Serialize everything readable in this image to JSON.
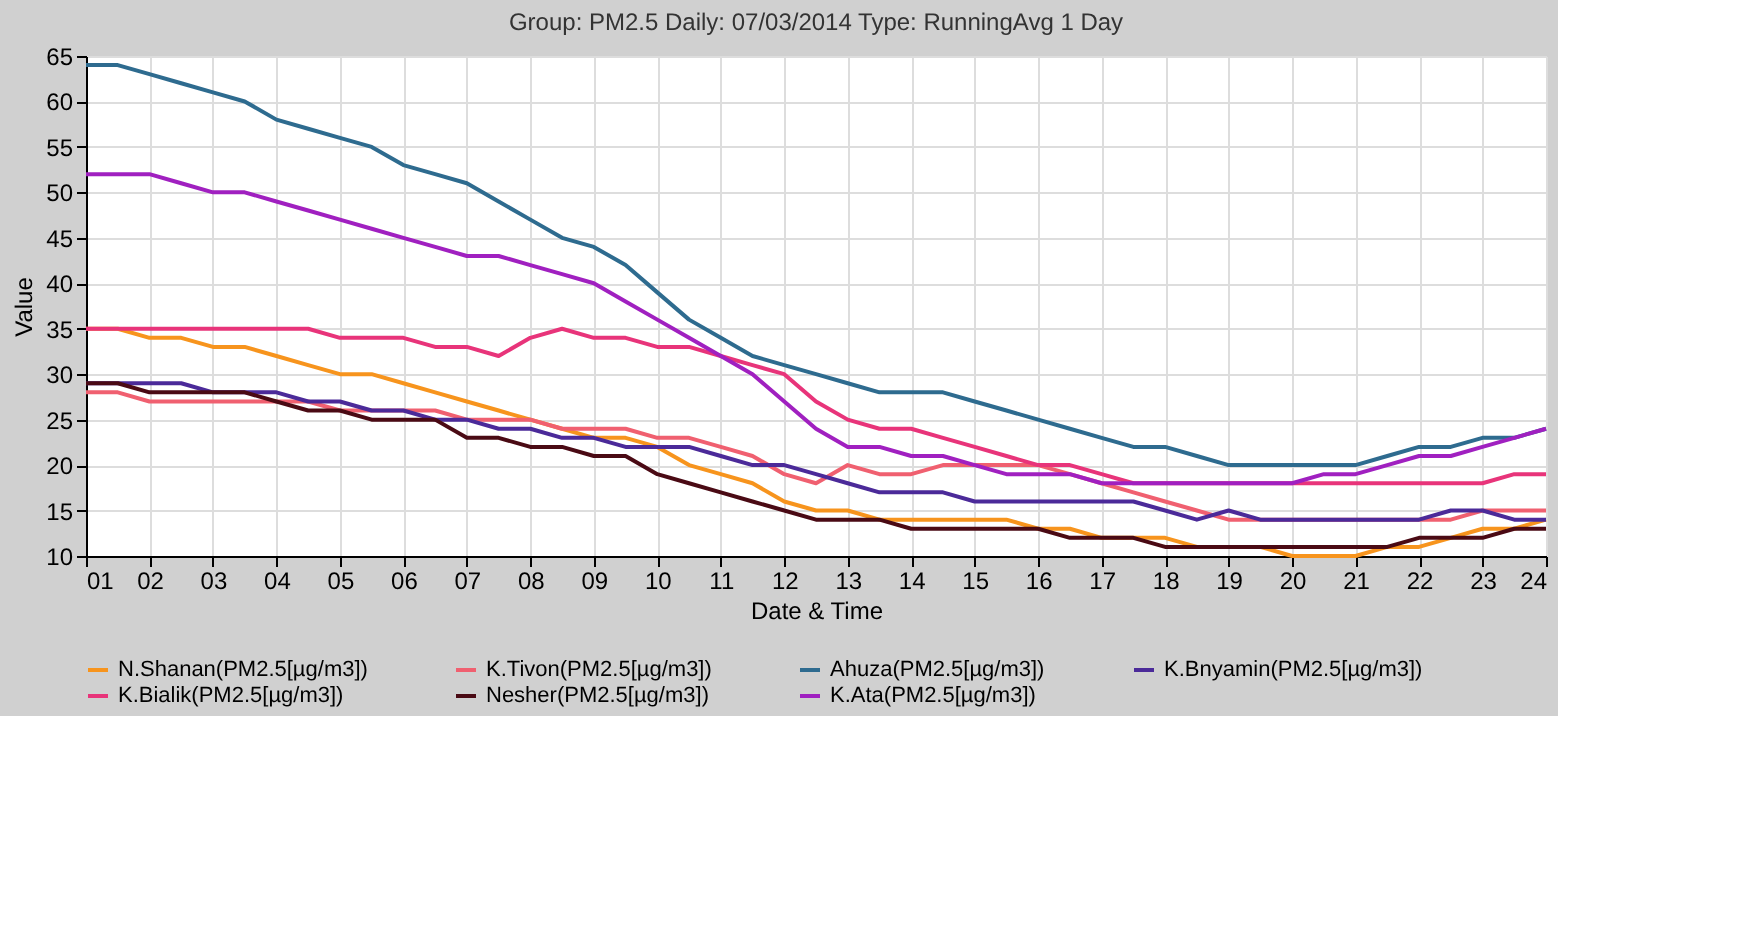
{
  "chart_data": {
    "type": "line",
    "title": "Group: PM2.5 Daily: 07/03/2014  Type: RunningAvg 1 Day",
    "xlabel": "Date & Time",
    "ylabel": "Value",
    "x": [
      1,
      1.5,
      2,
      2.5,
      3,
      3.5,
      4,
      4.5,
      5,
      5.5,
      6,
      6.5,
      7,
      7.5,
      8,
      8.5,
      9,
      9.5,
      10,
      10.5,
      11,
      11.5,
      12,
      12.5,
      13,
      13.5,
      14,
      14.5,
      15,
      15.5,
      16,
      16.5,
      17,
      17.5,
      18,
      18.5,
      19,
      19.5,
      20,
      20.5,
      21,
      21.5,
      22,
      22.5,
      23,
      23.5,
      24
    ],
    "series": [
      {
        "name": "N.Shanan(PM2.5[µg/m3])",
        "color": "#f7941d",
        "values": [
          35,
          35,
          34,
          34,
          33,
          33,
          32,
          31,
          30,
          30,
          29,
          28,
          27,
          26,
          25,
          24,
          23,
          23,
          22,
          20,
          19,
          18,
          16,
          15,
          15,
          14,
          14,
          14,
          14,
          14,
          13,
          13,
          12,
          12,
          12,
          11,
          11,
          11,
          10,
          10,
          10,
          11,
          11,
          12,
          13,
          13,
          14
        ]
      },
      {
        "name": "K.Tivon(PM2.5[µg/m3])",
        "color": "#f06070",
        "values": [
          28,
          28,
          27,
          27,
          27,
          27,
          27,
          27,
          26,
          26,
          26,
          26,
          25,
          25,
          25,
          24,
          24,
          24,
          23,
          23,
          22,
          21,
          19,
          18,
          20,
          19,
          19,
          20,
          20,
          20,
          20,
          19,
          18,
          17,
          16,
          15,
          14,
          14,
          14,
          14,
          14,
          14,
          14,
          14,
          15,
          15,
          15
        ]
      },
      {
        "name": "Ahuza(PM2.5[µg/m3])",
        "color": "#2e6b8f",
        "values": [
          64,
          64,
          63,
          62,
          61,
          60,
          58,
          57,
          56,
          55,
          53,
          52,
          51,
          49,
          47,
          45,
          44,
          42,
          39,
          36,
          34,
          32,
          31,
          30,
          29,
          28,
          28,
          28,
          27,
          26,
          25,
          24,
          23,
          22,
          22,
          21,
          20,
          20,
          20,
          20,
          20,
          21,
          22,
          22,
          23,
          23,
          24
        ]
      },
      {
        "name": "K.Bnyamin(PM2.5[µg/m3])",
        "color": "#4b2a99",
        "values": [
          29,
          29,
          29,
          29,
          28,
          28,
          28,
          27,
          27,
          26,
          26,
          25,
          25,
          24,
          24,
          23,
          23,
          22,
          22,
          22,
          21,
          20,
          20,
          19,
          18,
          17,
          17,
          17,
          16,
          16,
          16,
          16,
          16,
          16,
          15,
          14,
          15,
          14,
          14,
          14,
          14,
          14,
          14,
          15,
          15,
          14,
          14
        ]
      },
      {
        "name": "K.Bialik(PM2.5[µg/m3])",
        "color": "#e8347a",
        "values": [
          35,
          35,
          35,
          35,
          35,
          35,
          35,
          35,
          34,
          34,
          34,
          33,
          33,
          32,
          34,
          35,
          34,
          34,
          33,
          33,
          32,
          31,
          30,
          27,
          25,
          24,
          24,
          23,
          22,
          21,
          20,
          20,
          19,
          18,
          18,
          18,
          18,
          18,
          18,
          18,
          18,
          18,
          18,
          18,
          18,
          19,
          19
        ]
      },
      {
        "name": "Nesher(PM2.5[µg/m3])",
        "color": "#4a0a14",
        "values": [
          29,
          29,
          28,
          28,
          28,
          28,
          27,
          26,
          26,
          25,
          25,
          25,
          23,
          23,
          22,
          22,
          21,
          21,
          19,
          18,
          17,
          16,
          15,
          14,
          14,
          14,
          13,
          13,
          13,
          13,
          13,
          12,
          12,
          12,
          11,
          11,
          11,
          11,
          11,
          11,
          11,
          11,
          12,
          12,
          12,
          13,
          13
        ]
      },
      {
        "name": "K.Ata(PM2.5[µg/m3])",
        "color": "#a020c0",
        "values": [
          52,
          52,
          52,
          51,
          50,
          50,
          49,
          48,
          47,
          46,
          45,
          44,
          43,
          43,
          42,
          41,
          40,
          38,
          36,
          34,
          32,
          30,
          27,
          24,
          22,
          22,
          21,
          21,
          20,
          19,
          19,
          19,
          18,
          18,
          18,
          18,
          18,
          18,
          18,
          19,
          19,
          20,
          21,
          21,
          22,
          23,
          24
        ]
      }
    ],
    "xlim": [
      1,
      24
    ],
    "xticks": [
      {
        "value": 1,
        "label": "01"
      },
      {
        "value": 2,
        "label": "02"
      },
      {
        "value": 3,
        "label": "03"
      },
      {
        "value": 4,
        "label": "04"
      },
      {
        "value": 5,
        "label": "05"
      },
      {
        "value": 6,
        "label": "06"
      },
      {
        "value": 7,
        "label": "07"
      },
      {
        "value": 8,
        "label": "08"
      },
      {
        "value": 9,
        "label": "09"
      },
      10,
      11,
      12,
      13,
      14,
      15,
      16,
      17,
      18,
      19,
      20,
      21,
      22,
      23,
      24
    ],
    "ylim": [
      10,
      65
    ],
    "yticks": [
      10,
      15,
      20,
      25,
      30,
      35,
      40,
      45,
      50,
      55,
      60,
      65
    ],
    "grid": true,
    "legend": "bottom",
    "marker": "none",
    "line_style": "solid"
  }
}
